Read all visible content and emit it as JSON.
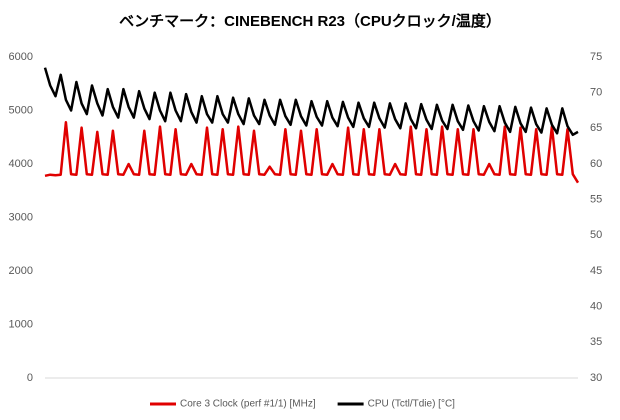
{
  "chart_data": {
    "type": "line",
    "title": "ベンチマーク：CINEBENCH R23（CPUクロック/温度）",
    "ylim": [
      0,
      6000
    ],
    "yticks": [
      0,
      1000,
      2000,
      3000,
      4000,
      5000,
      6000
    ],
    "y2lim": [
      30,
      75
    ],
    "y2ticks": [
      30,
      35,
      40,
      45,
      50,
      55,
      60,
      65,
      70,
      75
    ],
    "grid": false,
    "legend": "bottom",
    "series": [
      {
        "name": "Core 3 Clock (perf #1/1) [MHz]",
        "color": "#e00000",
        "axis": "y",
        "values": [
          3780,
          3800,
          3790,
          3800,
          4780,
          3810,
          3800,
          4680,
          3810,
          3800,
          4600,
          3810,
          3800,
          4620,
          3810,
          3800,
          4000,
          3810,
          3800,
          4620,
          3810,
          3800,
          4700,
          3810,
          3800,
          4650,
          3810,
          3800,
          4000,
          3810,
          3800,
          4680,
          3810,
          3800,
          4650,
          3810,
          3800,
          4700,
          3810,
          3800,
          4620,
          3810,
          3800,
          3950,
          3810,
          3800,
          4650,
          3810,
          3800,
          4620,
          3810,
          3800,
          4650,
          3810,
          3800,
          4000,
          3810,
          3800,
          4680,
          3810,
          3800,
          4650,
          3810,
          3800,
          4650,
          3810,
          3800,
          4000,
          3810,
          3800,
          4700,
          3810,
          3800,
          4650,
          3810,
          3800,
          4700,
          3810,
          3800,
          4650,
          3810,
          3800,
          4650,
          3810,
          3800,
          4000,
          3810,
          3800,
          4700,
          3810,
          3800,
          4680,
          3810,
          3800,
          4650,
          3810,
          3800,
          4700,
          3810,
          3800,
          4650,
          3810,
          3650
        ]
      },
      {
        "name": "CPU (Tctl/Tdie) [°C]",
        "color": "#000000",
        "axis": "y2",
        "values": [
          73.5,
          71,
          69.5,
          72.5,
          69,
          67.5,
          71.5,
          68.5,
          67,
          71,
          68.5,
          66.8,
          70.5,
          68,
          66.5,
          70.5,
          68,
          66.5,
          70.2,
          67.8,
          66.3,
          70,
          67.5,
          66,
          70,
          67.5,
          66,
          69.8,
          67.3,
          65.8,
          69.5,
          67,
          65.8,
          69.5,
          67,
          65.8,
          69.3,
          67,
          65.6,
          69.2,
          66.8,
          65.6,
          69,
          66.8,
          65.5,
          69,
          66.7,
          65.5,
          69,
          66.7,
          65.4,
          68.8,
          66.6,
          65.4,
          68.8,
          66.5,
          65.3,
          68.7,
          66.5,
          65.2,
          68.6,
          66.4,
          65.2,
          68.6,
          66.4,
          65.1,
          68.5,
          66.3,
          65,
          68.5,
          66.3,
          65,
          68.4,
          66.2,
          64.9,
          68.3,
          66.1,
          64.9,
          68.3,
          66,
          64.8,
          68.2,
          66,
          64.7,
          68.1,
          65.9,
          64.6,
          68.1,
          65.8,
          64.5,
          68,
          65.7,
          64.5,
          67.9,
          65.6,
          64.4,
          67.8,
          65.5,
          64.3,
          67.8,
          65.3,
          64.1,
          64.5
        ]
      }
    ]
  }
}
